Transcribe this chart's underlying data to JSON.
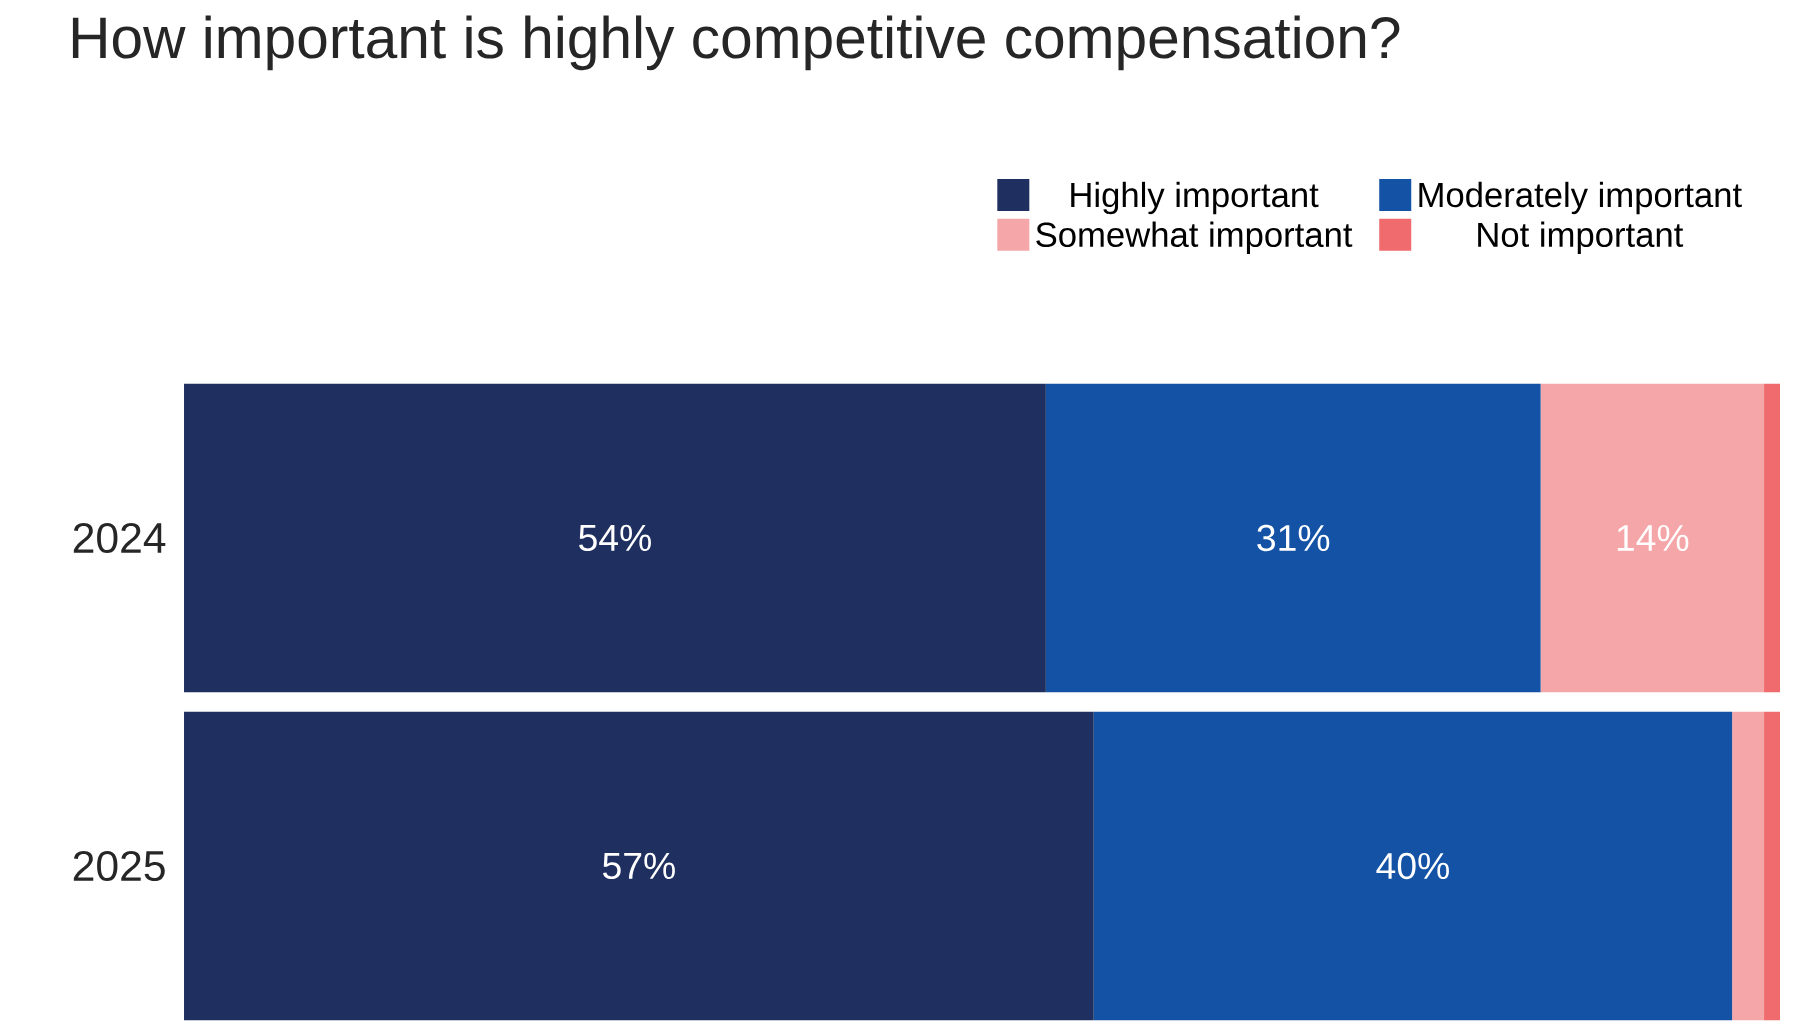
{
  "chart_data": {
    "type": "bar",
    "orientation": "horizontal",
    "stacked": true,
    "title": "How important is highly competitive compensation?",
    "categories": [
      "2024",
      "2025"
    ],
    "legend": "top right",
    "series": [
      {
        "name": "Highly important",
        "color": "#1f3060",
        "values": [
          54,
          57
        ],
        "value_labels": [
          "54%",
          "57%"
        ]
      },
      {
        "name": "Moderately important",
        "color": "#1352a5",
        "values": [
          31,
          40
        ],
        "value_labels": [
          "31%",
          "40%"
        ]
      },
      {
        "name": "Somewhat important",
        "color": "#f5a6a8",
        "values": [
          14,
          2
        ],
        "value_labels": [
          "14%",
          null
        ]
      },
      {
        "name": "Not important",
        "color": "#ef6b6e",
        "values": [
          1,
          1
        ],
        "value_labels": [
          null,
          null
        ]
      }
    ]
  }
}
